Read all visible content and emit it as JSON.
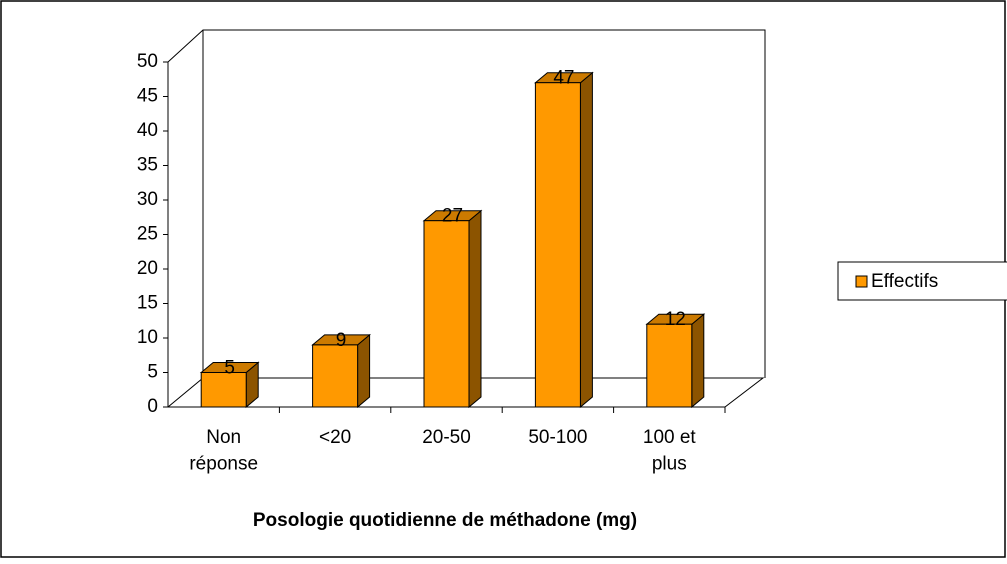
{
  "chart_data": {
    "type": "bar3d",
    "x_label": "Posologie quotidienne de méthadone (mg)",
    "categories": [
      "Non\nréponse",
      "<20",
      "20-50",
      "50-100",
      "100 et\nplus"
    ],
    "series": [
      {
        "name": "Effectifs",
        "color": "#ff9900",
        "values": [
          5,
          9,
          27,
          47,
          12
        ]
      }
    ],
    "ylim": [
      0,
      50
    ],
    "yticks": [
      0,
      5,
      10,
      15,
      20,
      25,
      30,
      35,
      40,
      45,
      50
    ],
    "grid": false,
    "legend": "right"
  }
}
